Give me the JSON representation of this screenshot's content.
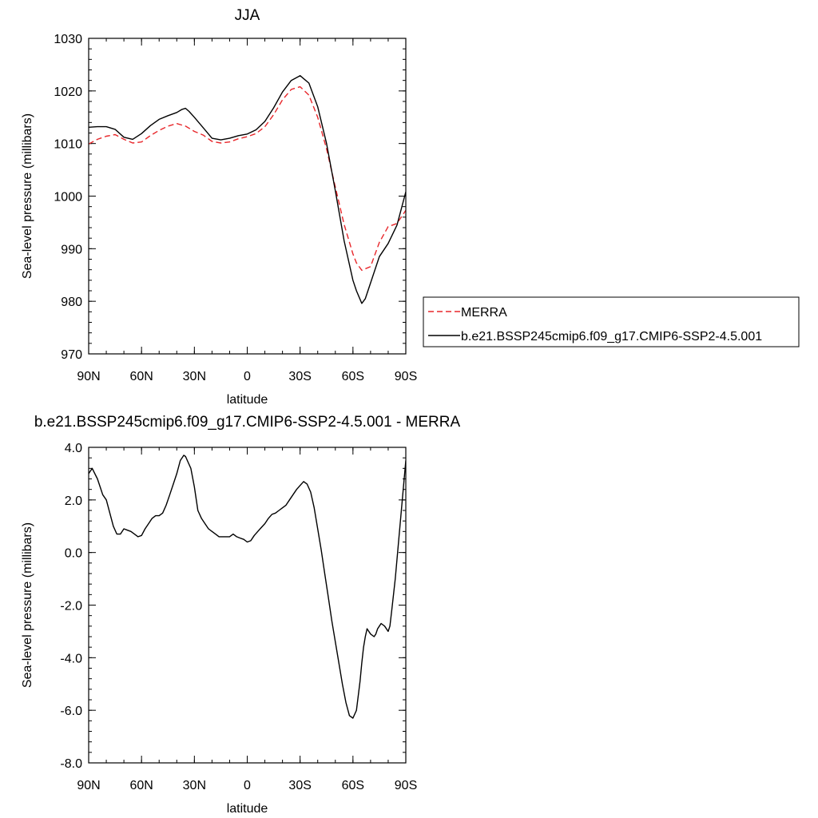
{
  "chart_data": [
    {
      "type": "line",
      "title": "JJA",
      "xlabel": "latitude",
      "ylabel": "Sea-level pressure (millibars)",
      "xlim": [
        90,
        -90
      ],
      "ylim": [
        970,
        1030
      ],
      "x_ticks": [
        {
          "value": 90,
          "label": "90N"
        },
        {
          "value": 60,
          "label": "60N"
        },
        {
          "value": 30,
          "label": "30N"
        },
        {
          "value": 0,
          "label": "0"
        },
        {
          "value": -30,
          "label": "30S"
        },
        {
          "value": -60,
          "label": "60S"
        },
        {
          "value": -90,
          "label": "90S"
        }
      ],
      "y_ticks": [
        {
          "value": 1030,
          "label": "1030"
        },
        {
          "value": 1020,
          "label": "1020"
        },
        {
          "value": 1010,
          "label": "1010"
        },
        {
          "value": 1000,
          "label": "1000"
        },
        {
          "value": 990,
          "label": "990"
        },
        {
          "value": 980,
          "label": "980"
        },
        {
          "value": 970,
          "label": "970"
        }
      ],
      "grid": false,
      "legend_position": "right",
      "series": [
        {
          "name": "MERRA",
          "color": "#e8262a",
          "dash": "dashed",
          "x": [
            90,
            85,
            80,
            75,
            70,
            65,
            60,
            55,
            50,
            45,
            40,
            35,
            30,
            25,
            20,
            15,
            10,
            5,
            0,
            -5,
            -10,
            -15,
            -20,
            -25,
            -30,
            -35,
            -40,
            -45,
            -50,
            -55,
            -60,
            -62,
            -65,
            -70,
            -75,
            -80,
            -85,
            -90
          ],
          "y": [
            1009.9,
            1010.8,
            1011.4,
            1011.7,
            1010.8,
            1010.1,
            1010.3,
            1011.5,
            1012.5,
            1013.3,
            1013.8,
            1013.3,
            1012.3,
            1011.6,
            1010.4,
            1010.1,
            1010.3,
            1010.9,
            1011.3,
            1011.9,
            1013.2,
            1015.5,
            1018.3,
            1020.3,
            1020.8,
            1019.2,
            1015.0,
            1009.0,
            1001.7,
            994.6,
            989.0,
            987.3,
            985.9,
            986.6,
            991.2,
            994.2,
            994.8,
            997.3
          ]
        },
        {
          "name": "b.e21.BSSP245cmip6.f09_g17.CMIP6-SSP2-4.5.001",
          "color": "#000000",
          "dash": "solid",
          "x": [
            90,
            85,
            80,
            75,
            70,
            65,
            60,
            55,
            50,
            45,
            40,
            37,
            35,
            33,
            30,
            25,
            20,
            15,
            10,
            5,
            0,
            -5,
            -10,
            -15,
            -20,
            -25,
            -30,
            -35,
            -40,
            -45,
            -50,
            -55,
            -60,
            -62,
            -65,
            -67,
            -70,
            -75,
            -80,
            -85,
            -90
          ],
          "y": [
            1013.1,
            1013.2,
            1013.2,
            1012.7,
            1011.2,
            1010.8,
            1011.9,
            1013.4,
            1014.6,
            1015.3,
            1015.9,
            1016.5,
            1016.7,
            1016.1,
            1015.0,
            1013.0,
            1011.0,
            1010.7,
            1011.0,
            1011.5,
            1011.8,
            1012.6,
            1014.2,
            1016.8,
            1019.8,
            1022.0,
            1022.9,
            1021.5,
            1017.0,
            1010.0,
            1001.0,
            991.5,
            984.0,
            982.0,
            979.6,
            980.5,
            983.5,
            988.5,
            991.0,
            994.5,
            1000.8
          ]
        }
      ]
    },
    {
      "type": "line",
      "title": "b.e21.BSSP245cmip6.f09_g17.CMIP6-SSP2-4.5.001 - MERRA",
      "xlabel": "latitude",
      "ylabel": "Sea-level pressure (millibars)",
      "xlim": [
        90,
        -90
      ],
      "ylim": [
        -8.0,
        4.0
      ],
      "x_ticks": [
        {
          "value": 90,
          "label": "90N"
        },
        {
          "value": 60,
          "label": "60N"
        },
        {
          "value": 30,
          "label": "30N"
        },
        {
          "value": 0,
          "label": "0"
        },
        {
          "value": -30,
          "label": "30S"
        },
        {
          "value": -60,
          "label": "60S"
        },
        {
          "value": -90,
          "label": "90S"
        }
      ],
      "y_ticks": [
        {
          "value": 4.0,
          "label": "4.0"
        },
        {
          "value": 2.0,
          "label": "2.0"
        },
        {
          "value": 0.0,
          "label": "0.0"
        },
        {
          "value": -2.0,
          "label": "-2.0"
        },
        {
          "value": -4.0,
          "label": "-4.0"
        },
        {
          "value": -6.0,
          "label": "-6.0"
        },
        {
          "value": -8.0,
          "label": "-8.0"
        }
      ],
      "grid": false,
      "series": [
        {
          "color": "#000000",
          "dash": "solid",
          "x": [
            90,
            88,
            85,
            82,
            80,
            78,
            76,
            74,
            72,
            70,
            68,
            66,
            64,
            62,
            60,
            58,
            56,
            54,
            52,
            50,
            48,
            46,
            44,
            42,
            40,
            38,
            36,
            35,
            34,
            33,
            32,
            30,
            28,
            26,
            24,
            22,
            20,
            18,
            16,
            14,
            12,
            10,
            8,
            6,
            4,
            2,
            0,
            -2,
            -4,
            -6,
            -8,
            -10,
            -12,
            -14,
            -16,
            -18,
            -20,
            -22,
            -24,
            -26,
            -28,
            -30,
            -32,
            -34,
            -36,
            -38,
            -40,
            -42,
            -44,
            -46,
            -48,
            -50,
            -52,
            -54,
            -56,
            -58,
            -60,
            -62,
            -64,
            -65,
            -66,
            -67,
            -68,
            -70,
            -72,
            -73,
            -74,
            -75,
            -76,
            -78,
            -80,
            -81,
            -82,
            -84,
            -86,
            -88,
            -90
          ],
          "y": [
            3.0,
            3.2,
            2.8,
            2.2,
            2.0,
            1.5,
            1.0,
            0.7,
            0.7,
            0.9,
            0.85,
            0.8,
            0.7,
            0.6,
            0.65,
            0.9,
            1.1,
            1.3,
            1.4,
            1.4,
            1.5,
            1.8,
            2.2,
            2.6,
            3.0,
            3.5,
            3.7,
            3.65,
            3.5,
            3.35,
            3.2,
            2.5,
            1.6,
            1.3,
            1.1,
            0.9,
            0.8,
            0.7,
            0.6,
            0.6,
            0.6,
            0.6,
            0.7,
            0.6,
            0.55,
            0.5,
            0.4,
            0.45,
            0.65,
            0.8,
            0.95,
            1.1,
            1.3,
            1.45,
            1.5,
            1.6,
            1.7,
            1.8,
            2.0,
            2.2,
            2.4,
            2.55,
            2.7,
            2.6,
            2.3,
            1.7,
            0.9,
            0.1,
            -0.8,
            -1.7,
            -2.6,
            -3.4,
            -4.2,
            -5.0,
            -5.7,
            -6.2,
            -6.3,
            -6.0,
            -4.9,
            -4.2,
            -3.6,
            -3.2,
            -2.9,
            -3.1,
            -3.2,
            -3.1,
            -2.9,
            -2.8,
            -2.7,
            -2.8,
            -3.0,
            -2.8,
            -2.2,
            -1.0,
            0.5,
            2.0,
            3.5
          ]
        }
      ]
    }
  ]
}
